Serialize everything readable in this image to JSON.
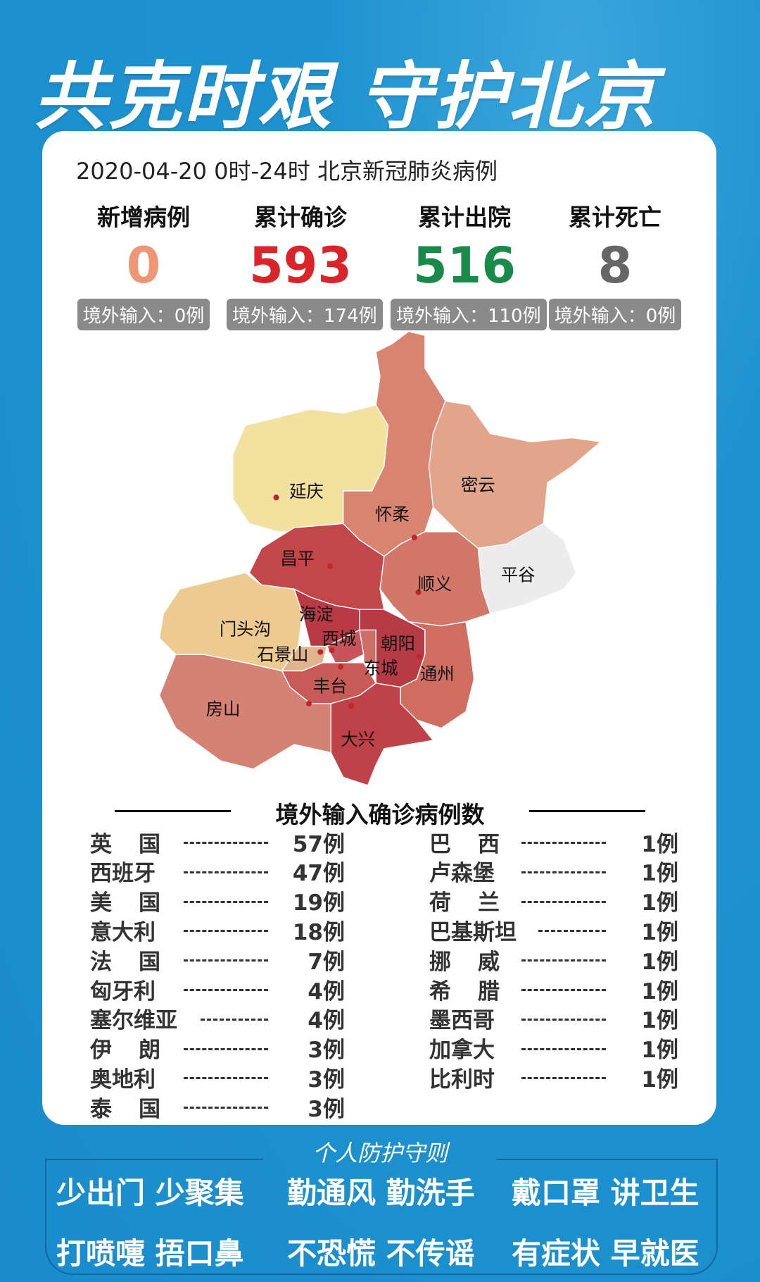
{
  "title": "共克时艰 守护北京",
  "date_line": "2020-04-20  0时-24时  北京新冠肺炎病例",
  "stats": [
    {
      "label": "新增病例",
      "value": "0",
      "color": "#ee9676",
      "badge": "境外输入：0例"
    },
    {
      "label": "累计确诊",
      "value": "593",
      "color": "#d9242a",
      "badge": "境外输入：174例"
    },
    {
      "label": "累计出院",
      "value": "516",
      "color": "#1a8a4a",
      "badge": "境外输入：110例"
    },
    {
      "label": "累计死亡",
      "value": "8",
      "color": "#666666",
      "badge": "境外输入：0例"
    }
  ],
  "map": {
    "districts": [
      {
        "name": "延庆",
        "color": "#f3e1a0"
      },
      {
        "name": "怀柔",
        "color": "#d98470"
      },
      {
        "name": "密云",
        "color": "#e3a48c"
      },
      {
        "name": "平谷",
        "color": "#ececec"
      },
      {
        "name": "顺义",
        "color": "#d3776a"
      },
      {
        "name": "昌平",
        "color": "#c2474b"
      },
      {
        "name": "门头沟",
        "color": "#edca90"
      },
      {
        "name": "海淀",
        "color": "#b93a44"
      },
      {
        "name": "石景山",
        "color": "#e0b48e"
      },
      {
        "name": "西城",
        "color": "#c7545a"
      },
      {
        "name": "东城",
        "color": "#cf6e66"
      },
      {
        "name": "朝阳",
        "color": "#b73b45"
      },
      {
        "name": "丰台",
        "color": "#c85a57"
      },
      {
        "name": "通州",
        "color": "#cf6d60"
      },
      {
        "name": "房山",
        "color": "#d48273"
      },
      {
        "name": "大兴",
        "color": "#bf4249"
      }
    ]
  },
  "foreign": {
    "title": "境外输入确诊病例数",
    "left": [
      {
        "country": "英国",
        "count": "57例"
      },
      {
        "country": "西班牙",
        "count": "47例"
      },
      {
        "country": "美国",
        "count": "19例"
      },
      {
        "country": "意大利",
        "count": "18例"
      },
      {
        "country": "法国",
        "count": "7例"
      },
      {
        "country": "匈牙利",
        "count": "4例"
      },
      {
        "country": "塞尔维亚",
        "count": "4例"
      },
      {
        "country": "伊朗",
        "count": "3例"
      },
      {
        "country": "奥地利",
        "count": "3例"
      },
      {
        "country": "泰国",
        "count": "3例"
      }
    ],
    "right": [
      {
        "country": "巴西",
        "count": "1例"
      },
      {
        "country": "卢森堡",
        "count": "1例"
      },
      {
        "country": "荷兰",
        "count": "1例"
      },
      {
        "country": "巴基斯坦",
        "count": "1例"
      },
      {
        "country": "挪威",
        "count": "1例"
      },
      {
        "country": "希腊",
        "count": "1例"
      },
      {
        "country": "墨西哥",
        "count": "1例"
      },
      {
        "country": "加拿大",
        "count": "1例"
      },
      {
        "country": "比利时",
        "count": "1例"
      }
    ]
  },
  "rules": {
    "title": "个人防护守则",
    "items": [
      "少出门 少聚集",
      "勤通风 勤洗手",
      "戴口罩 讲卫生",
      "打喷嚏 捂口鼻",
      "不恐慌 不传谣",
      "有症状 早就医"
    ]
  }
}
